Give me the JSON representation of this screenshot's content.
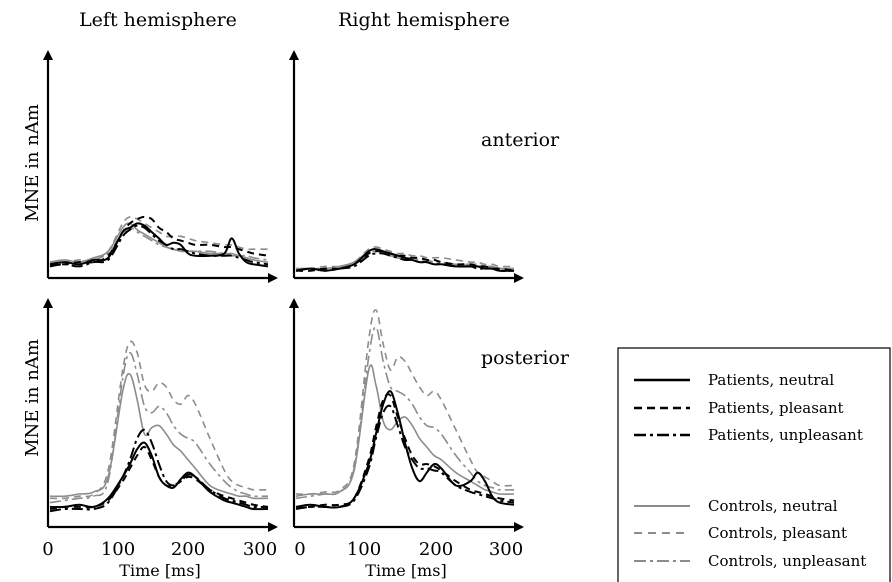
{
  "column_titles": [
    "Left hemisphere",
    "Right hemisphere"
  ],
  "row_labels": [
    "anterior",
    "posterior"
  ],
  "y_axis_label": "MNE in nAm",
  "x_axis_label": "Time [ms]",
  "x_ticks": [
    "0",
    "100",
    "200",
    "300"
  ],
  "styles": {
    "patients_color": "#000000",
    "controls_color": "#8c8c8c",
    "axis_color": "#000000"
  },
  "chart_data": [
    {
      "type": "line",
      "panel": "left-anterior",
      "x": [
        0,
        20,
        40,
        60,
        80,
        100,
        110,
        120,
        130,
        140,
        150,
        160,
        170,
        180,
        190,
        200,
        220,
        240,
        250,
        260,
        270,
        280,
        300
      ],
      "xlim": [
        0,
        300
      ],
      "ylim": [
        0,
        100
      ],
      "series": [
        {
          "name": "Patients, neutral",
          "style": "solid",
          "group": "patients",
          "values": [
            5,
            6,
            5,
            7,
            8,
            20,
            22,
            24,
            23,
            20,
            17,
            14,
            15,
            14,
            10,
            9,
            9,
            10,
            17,
            10,
            6,
            5,
            4
          ]
        },
        {
          "name": "Patients, pleasant",
          "style": "dashed",
          "group": "patients",
          "values": [
            5,
            5,
            6,
            6,
            9,
            20,
            24,
            26,
            27,
            26,
            22,
            20,
            17,
            16,
            15,
            14,
            14,
            13,
            13,
            12,
            11,
            10,
            9
          ]
        },
        {
          "name": "Patients, unpleasant",
          "style": "dashdot",
          "group": "patients",
          "values": [
            4,
            5,
            4,
            6,
            7,
            18,
            21,
            23,
            22,
            19,
            16,
            14,
            12,
            12,
            11,
            10,
            9,
            9,
            9,
            8,
            7,
            6,
            5
          ]
        },
        {
          "name": "Controls, neutral",
          "style": "solid",
          "group": "controls",
          "values": [
            6,
            7,
            6,
            8,
            11,
            22,
            24,
            21,
            19,
            17,
            15,
            13,
            12,
            11,
            11,
            11,
            10,
            10,
            9,
            9,
            8,
            7,
            6
          ]
        },
        {
          "name": "Controls, pleasant",
          "style": "dashed",
          "group": "controls",
          "values": [
            6,
            6,
            7,
            7,
            11,
            24,
            27,
            26,
            24,
            22,
            20,
            18,
            18,
            18,
            17,
            16,
            15,
            14,
            14,
            13,
            12,
            12,
            12
          ]
        },
        {
          "name": "Controls, unpleasant",
          "style": "dashdot",
          "group": "controls",
          "values": [
            5,
            6,
            5,
            7,
            10,
            19,
            22,
            20,
            18,
            16,
            14,
            13,
            12,
            12,
            11,
            11,
            11,
            10,
            10,
            9,
            9,
            8,
            7
          ]
        }
      ]
    },
    {
      "type": "line",
      "panel": "right-anterior",
      "x": [
        0,
        20,
        40,
        60,
        80,
        100,
        110,
        120,
        130,
        140,
        150,
        160,
        170,
        180,
        190,
        200,
        220,
        240,
        250,
        260,
        270,
        280,
        300
      ],
      "xlim": [
        0,
        300
      ],
      "ylim": [
        0,
        100
      ],
      "series": [
        {
          "name": "Patients, neutral",
          "style": "solid",
          "group": "patients",
          "values": [
            2,
            3,
            2,
            3,
            5,
            11,
            12,
            11,
            10,
            9,
            8,
            7,
            6,
            6,
            5,
            5,
            4,
            4,
            4,
            3,
            3,
            2,
            2
          ]
        },
        {
          "name": "Patients, pleasant",
          "style": "dashed",
          "group": "patients",
          "values": [
            2,
            2,
            3,
            3,
            5,
            10,
            11,
            11,
            10,
            9,
            9,
            8,
            8,
            7,
            7,
            6,
            5,
            5,
            4,
            4,
            3,
            3,
            2
          ]
        },
        {
          "name": "Patients, unpleasant",
          "style": "dashdot",
          "group": "patients",
          "values": [
            2,
            3,
            2,
            3,
            4,
            9,
            10,
            10,
            9,
            8,
            7,
            7,
            6,
            6,
            5,
            5,
            4,
            4,
            3,
            3,
            3,
            2,
            2
          ]
        },
        {
          "name": "Controls, neutral",
          "style": "solid",
          "group": "controls",
          "values": [
            3,
            3,
            3,
            4,
            6,
            11,
            12,
            10,
            9,
            8,
            7,
            7,
            6,
            6,
            5,
            5,
            5,
            4,
            4,
            4,
            3,
            3,
            3
          ]
        },
        {
          "name": "Controls, pleasant",
          "style": "dashed",
          "group": "controls",
          "values": [
            3,
            3,
            4,
            4,
            6,
            12,
            13,
            12,
            11,
            10,
            10,
            9,
            9,
            8,
            8,
            8,
            7,
            6,
            6,
            5,
            5,
            4,
            4
          ]
        },
        {
          "name": "Controls, unpleasant",
          "style": "dashdot",
          "group": "controls",
          "values": [
            2,
            3,
            3,
            4,
            5,
            10,
            11,
            10,
            9,
            9,
            8,
            8,
            7,
            7,
            6,
            6,
            5,
            5,
            5,
            4,
            4,
            3,
            3
          ]
        }
      ]
    },
    {
      "type": "line",
      "panel": "left-posterior",
      "x": [
        0,
        20,
        40,
        60,
        80,
        100,
        110,
        120,
        130,
        140,
        150,
        160,
        170,
        180,
        190,
        200,
        220,
        240,
        250,
        260,
        270,
        280,
        300
      ],
      "xlim": [
        0,
        300
      ],
      "ylim": [
        0,
        100
      ],
      "series": [
        {
          "name": "Patients, neutral",
          "style": "solid",
          "group": "patients",
          "values": [
            8,
            8,
            9,
            8,
            12,
            22,
            28,
            35,
            38,
            32,
            22,
            18,
            17,
            21,
            24,
            22,
            15,
            11,
            10,
            9,
            8,
            7,
            7
          ]
        },
        {
          "name": "Patients, pleasant",
          "style": "dashed",
          "group": "patients",
          "values": [
            7,
            8,
            8,
            8,
            11,
            20,
            26,
            32,
            36,
            30,
            22,
            18,
            18,
            20,
            22,
            21,
            16,
            13,
            12,
            11,
            10,
            9,
            8
          ]
        },
        {
          "name": "Patients, unpleasant",
          "style": "dashdot",
          "group": "patients",
          "values": [
            6,
            7,
            7,
            7,
            10,
            22,
            30,
            40,
            44,
            38,
            28,
            20,
            18,
            20,
            23,
            22,
            16,
            12,
            11,
            10,
            9,
            8,
            8
          ]
        },
        {
          "name": "Controls, neutral",
          "style": "solid",
          "group": "controls",
          "values": [
            13,
            13,
            14,
            15,
            22,
            62,
            70,
            58,
            42,
            45,
            46,
            42,
            37,
            34,
            30,
            26,
            18,
            15,
            14,
            13,
            13,
            12,
            12
          ]
        },
        {
          "name": "Controls, pleasant",
          "style": "dashed",
          "group": "controls",
          "values": [
            12,
            12,
            13,
            14,
            25,
            72,
            85,
            80,
            65,
            62,
            66,
            64,
            58,
            56,
            60,
            56,
            40,
            25,
            20,
            18,
            17,
            16,
            16
          ]
        },
        {
          "name": "Controls, unpleasant",
          "style": "dashdot",
          "group": "controls",
          "values": [
            10,
            11,
            12,
            13,
            20,
            68,
            80,
            70,
            55,
            52,
            55,
            52,
            46,
            42,
            40,
            38,
            28,
            20,
            17,
            15,
            14,
            13,
            13
          ]
        }
      ]
    },
    {
      "type": "line",
      "panel": "right-posterior",
      "x": [
        0,
        20,
        40,
        60,
        80,
        100,
        110,
        120,
        130,
        140,
        150,
        160,
        170,
        180,
        190,
        200,
        220,
        240,
        250,
        260,
        270,
        280,
        300
      ],
      "xlim": [
        0,
        300
      ],
      "ylim": [
        0,
        100
      ],
      "series": [
        {
          "name": "Patients, neutral",
          "style": "solid",
          "group": "patients",
          "values": [
            8,
            9,
            8,
            8,
            12,
            28,
            42,
            56,
            62,
            52,
            38,
            26,
            20,
            24,
            28,
            26,
            18,
            20,
            24,
            20,
            13,
            10,
            9
          ]
        },
        {
          "name": "Patients, pleasant",
          "style": "dashed",
          "group": "patients",
          "values": [
            8,
            8,
            9,
            9,
            12,
            30,
            45,
            58,
            60,
            50,
            40,
            32,
            28,
            28,
            27,
            25,
            20,
            16,
            15,
            14,
            13,
            12,
            11
          ]
        },
        {
          "name": "Patients, unpleasant",
          "style": "dashdot",
          "group": "patients",
          "values": [
            7,
            8,
            8,
            8,
            11,
            26,
            40,
            52,
            55,
            46,
            36,
            30,
            26,
            26,
            25,
            24,
            18,
            15,
            14,
            13,
            12,
            11,
            10
          ]
        },
        {
          "name": "Controls, neutral",
          "style": "solid",
          "group": "controls",
          "values": [
            13,
            14,
            14,
            15,
            25,
            72,
            65,
            48,
            44,
            48,
            50,
            46,
            40,
            36,
            32,
            30,
            24,
            20,
            18,
            16,
            15,
            14,
            14
          ]
        },
        {
          "name": "Controls, pleasant",
          "style": "dashed",
          "group": "controls",
          "values": [
            14,
            14,
            15,
            16,
            28,
            86,
            100,
            84,
            72,
            78,
            76,
            70,
            64,
            60,
            62,
            58,
            44,
            30,
            24,
            22,
            20,
            18,
            18
          ]
        },
        {
          "name": "Controls, unpleasant",
          "style": "dashdot",
          "group": "controls",
          "values": [
            12,
            13,
            14,
            15,
            26,
            78,
            92,
            76,
            64,
            62,
            60,
            56,
            50,
            46,
            45,
            42,
            32,
            24,
            20,
            18,
            17,
            16,
            16
          ]
        }
      ]
    }
  ]
}
